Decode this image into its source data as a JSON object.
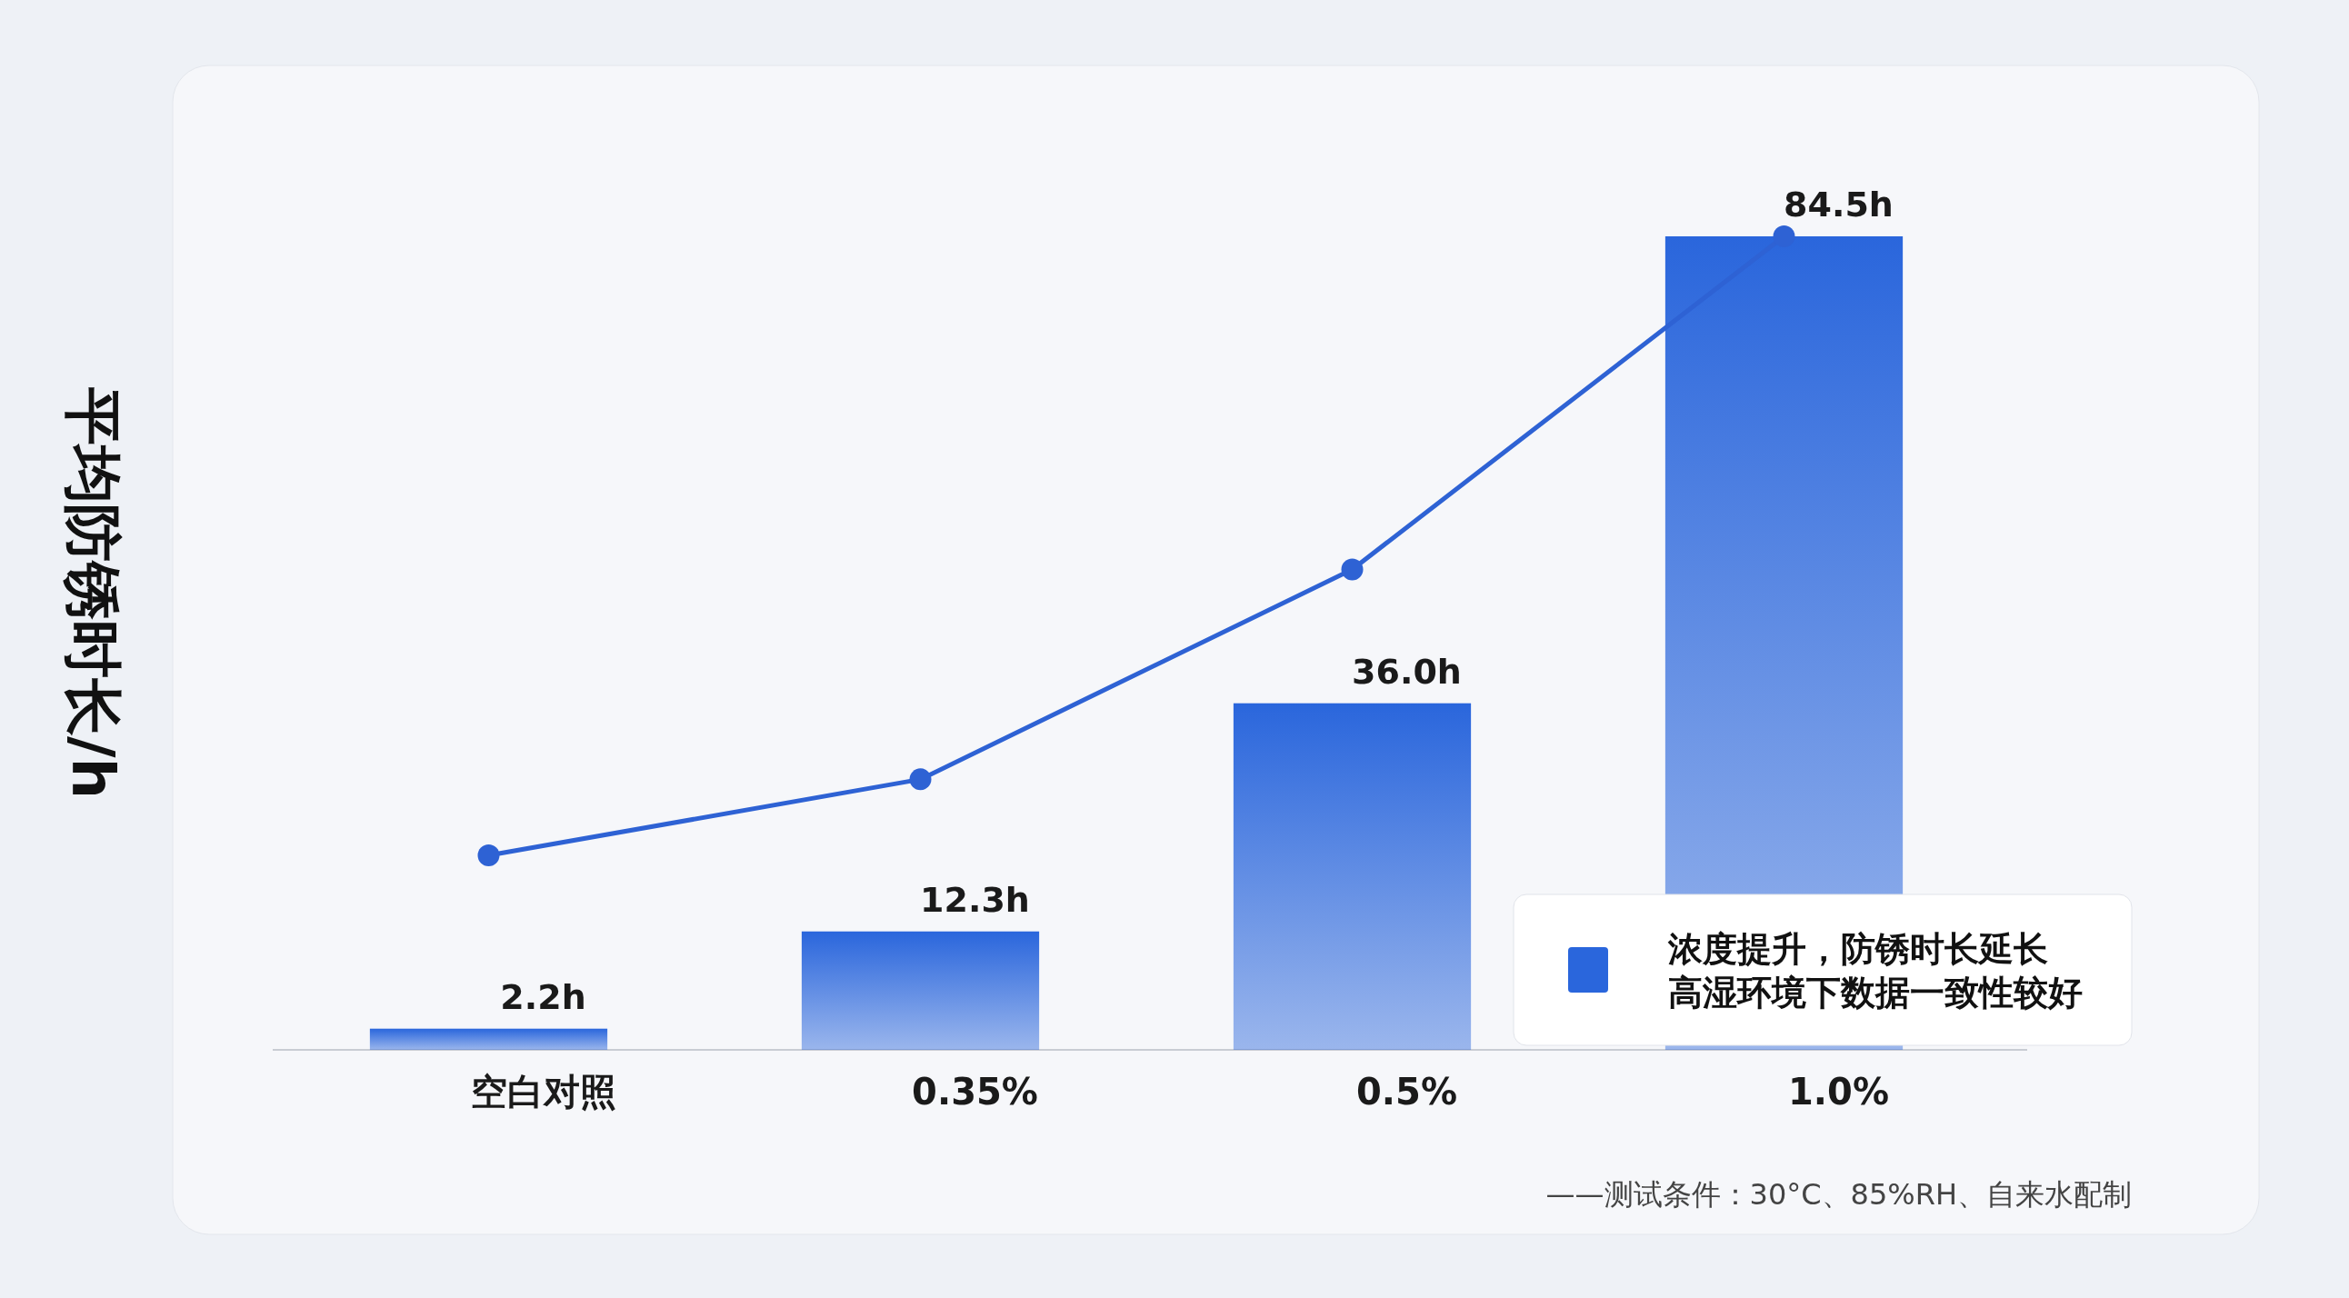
{
  "chart_data": {
    "type": "bar",
    "ylabel": "平均防锈时长/h",
    "categories": [
      "空白对照",
      "0.35%",
      "0.5%",
      "1.0%"
    ],
    "series": [
      {
        "name": "浓度提升，防锈时长延长高湿环境下数据一致性较好",
        "color": "#2a66dc",
        "values": [
          2.2,
          12.3,
          36.0,
          84.5
        ],
        "value_labels": [
          "2.2h",
          "12.3h",
          "36.0h",
          "84.5h"
        ]
      },
      {
        "type": "line",
        "color": "#2e62d4",
        "marker": "circle",
        "values": [
          20.2,
          28.1,
          49.9,
          84.5
        ]
      }
    ],
    "legend": "bottom right",
    "annotations": [
      "——测试条件：30°C、85%RH、自来水配制"
    ]
  }
}
